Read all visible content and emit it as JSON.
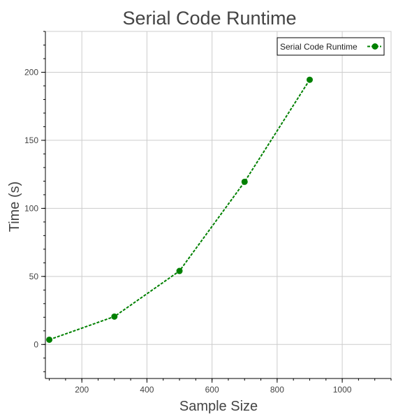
{
  "chart_data": {
    "type": "line",
    "title": "Serial Code Runtime",
    "xlabel": "Sample Size",
    "ylabel": "Time (s)",
    "xlim": [
      88,
      1150
    ],
    "ylim": [
      -25,
      230
    ],
    "x_ticks": [
      200,
      400,
      600,
      800,
      1000
    ],
    "x_tick_labels": [
      "200",
      "400",
      "600",
      "800",
      "1000"
    ],
    "x_minor_tick_step": 50,
    "y_ticks": [
      0,
      50,
      100,
      150,
      200
    ],
    "y_tick_labels": [
      "0",
      "50",
      "100",
      "150",
      "200"
    ],
    "y_minor_tick_step": 10,
    "grid": true,
    "legend_position": "top-right",
    "series": [
      {
        "name": "Serial Code Runtime",
        "color": "#008000",
        "line_style": "dashed",
        "marker": "circle",
        "x": [
          100,
          300,
          500,
          700,
          900
        ],
        "y": [
          3.5,
          20.5,
          54,
          119.5,
          194.5
        ]
      }
    ]
  }
}
